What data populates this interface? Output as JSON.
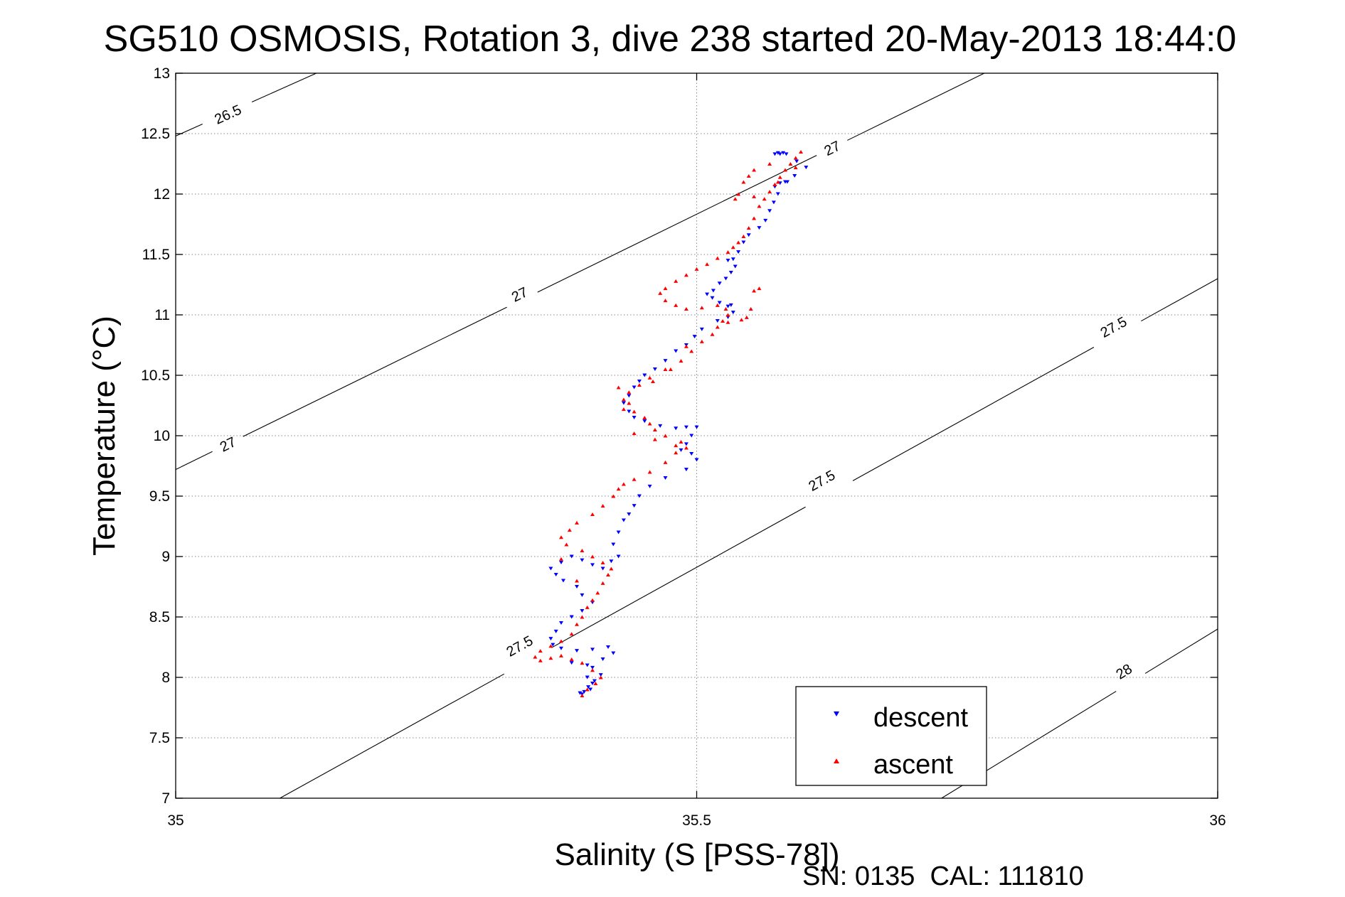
{
  "colors": {
    "descent": "#0000ff",
    "ascent": "#ff0000",
    "contour": "#000000",
    "grid": "#888888",
    "background": "#ffffff"
  },
  "chart_data": {
    "type": "scatter",
    "title": "SG510 OSMOSIS, Rotation 3, dive 238 started 20-May-2013 18:44:0",
    "xlabel": "Salinity (S [PSS-78])",
    "ylabel": "Temperature (°C)",
    "footer": "SN: 0135  CAL: 111810",
    "xlim": [
      35,
      36
    ],
    "ylim": [
      7,
      13
    ],
    "x_ticks": [
      35,
      35.5,
      36
    ],
    "x_tick_labels": [
      "35",
      "35.5",
      "36"
    ],
    "y_ticks": [
      7,
      7.5,
      8,
      8.5,
      9,
      9.5,
      10,
      10.5,
      11,
      11.5,
      12,
      12.5,
      13
    ],
    "y_tick_labels": [
      "7",
      "7.5",
      "8",
      "8.5",
      "9",
      "9.5",
      "10",
      "10.5",
      "11",
      "11.5",
      "12",
      "12.5",
      "13"
    ],
    "grid": true,
    "legend_position": "bottom-right",
    "density_contours": [
      {
        "label": "26.5",
        "points": [
          [
            35.0,
            12.48
          ],
          [
            35.135,
            13.0
          ]
        ],
        "label_positions": [
          [
            35.05,
            12.66
          ]
        ]
      },
      {
        "label": "27",
        "points": [
          [
            35.0,
            9.72
          ],
          [
            35.776,
            13.0
          ]
        ],
        "label_positions": [
          [
            35.05,
            9.93
          ],
          [
            35.33,
            11.17
          ],
          [
            35.63,
            12.38
          ]
        ]
      },
      {
        "label": "27.5",
        "points": [
          [
            35.1,
            7.0
          ],
          [
            36.0,
            11.3
          ]
        ],
        "label_positions": [
          [
            35.33,
            8.26
          ],
          [
            35.62,
            9.63
          ],
          [
            35.9,
            10.9
          ]
        ]
      },
      {
        "label": "28",
        "points": [
          [
            35.735,
            7.0
          ],
          [
            36.0,
            8.4
          ]
        ],
        "label_positions": [
          [
            35.91,
            8.05
          ]
        ]
      }
    ],
    "series": [
      {
        "name": "descent",
        "marker": "triangle-down",
        "color": "#0000ff",
        "points": [
          [
            35.575,
            12.33
          ],
          [
            35.578,
            12.34
          ],
          [
            35.58,
            12.33
          ],
          [
            35.583,
            12.34
          ],
          [
            35.586,
            12.33
          ],
          [
            35.596,
            12.27
          ],
          [
            35.605,
            12.22
          ],
          [
            35.594,
            12.15
          ],
          [
            35.585,
            12.1
          ],
          [
            35.58,
            12.09
          ],
          [
            35.587,
            12.1
          ],
          [
            35.575,
            12.06
          ],
          [
            35.578,
            12.0
          ],
          [
            35.574,
            11.93
          ],
          [
            35.57,
            11.86
          ],
          [
            35.566,
            11.78
          ],
          [
            35.56,
            11.72
          ],
          [
            35.55,
            11.66
          ],
          [
            35.545,
            11.6
          ],
          [
            35.54,
            11.52
          ],
          [
            35.535,
            11.46
          ],
          [
            35.53,
            11.45
          ],
          [
            35.537,
            11.4
          ],
          [
            35.533,
            11.35
          ],
          [
            35.528,
            11.3
          ],
          [
            35.522,
            11.26
          ],
          [
            35.516,
            11.2
          ],
          [
            35.51,
            11.17
          ],
          [
            35.515,
            11.14
          ],
          [
            35.522,
            11.1
          ],
          [
            35.53,
            11.07
          ],
          [
            35.533,
            11.08
          ],
          [
            35.535,
            11.02
          ],
          [
            35.53,
            10.98
          ],
          [
            35.52,
            10.95
          ],
          [
            35.505,
            10.88
          ],
          [
            35.498,
            10.82
          ],
          [
            35.49,
            10.75
          ],
          [
            35.48,
            10.7
          ],
          [
            35.47,
            10.62
          ],
          [
            35.46,
            10.55
          ],
          [
            35.45,
            10.5
          ],
          [
            35.445,
            10.45
          ],
          [
            35.44,
            10.4
          ],
          [
            35.435,
            10.33
          ],
          [
            35.43,
            10.27
          ],
          [
            35.435,
            10.2
          ],
          [
            35.44,
            10.15
          ],
          [
            35.45,
            10.12
          ],
          [
            35.465,
            10.08
          ],
          [
            35.48,
            10.06
          ],
          [
            35.49,
            10.07
          ],
          [
            35.5,
            10.07
          ],
          [
            35.495,
            10.0
          ],
          [
            35.49,
            9.93
          ],
          [
            35.485,
            9.88
          ],
          [
            35.495,
            9.85
          ],
          [
            35.5,
            9.8
          ],
          [
            35.49,
            9.72
          ],
          [
            35.47,
            9.65
          ],
          [
            35.455,
            9.58
          ],
          [
            35.445,
            9.5
          ],
          [
            35.44,
            9.42
          ],
          [
            35.435,
            9.35
          ],
          [
            35.43,
            9.3
          ],
          [
            35.425,
            9.2
          ],
          [
            35.42,
            9.1
          ],
          [
            35.425,
            9.0
          ],
          [
            35.418,
            8.96
          ],
          [
            35.41,
            8.9
          ],
          [
            35.4,
            8.93
          ],
          [
            35.39,
            8.97
          ],
          [
            35.38,
            9.0
          ],
          [
            35.37,
            8.95
          ],
          [
            35.36,
            8.9
          ],
          [
            35.365,
            8.85
          ],
          [
            35.372,
            8.8
          ],
          [
            35.385,
            8.75
          ],
          [
            35.39,
            8.68
          ],
          [
            35.4,
            8.62
          ],
          [
            35.39,
            8.55
          ],
          [
            35.38,
            8.5
          ],
          [
            35.37,
            8.45
          ],
          [
            35.365,
            8.38
          ],
          [
            35.36,
            8.32
          ],
          [
            35.362,
            8.27
          ],
          [
            35.37,
            8.24
          ],
          [
            35.385,
            8.22
          ],
          [
            35.4,
            8.23
          ],
          [
            35.415,
            8.25
          ],
          [
            35.42,
            8.2
          ],
          [
            35.41,
            8.15
          ],
          [
            35.4,
            8.08
          ],
          [
            35.395,
            8.0
          ],
          [
            35.4,
            7.95
          ],
          [
            35.398,
            7.9
          ],
          [
            35.392,
            7.88
          ],
          [
            35.388,
            7.87
          ],
          [
            35.39,
            7.86
          ],
          [
            35.396,
            7.92
          ],
          [
            35.402,
            7.97
          ],
          [
            35.408,
            8.02
          ],
          [
            35.395,
            8.1
          ],
          [
            35.38,
            8.12
          ]
        ]
      },
      {
        "name": "ascent",
        "marker": "triangle-up",
        "color": "#ff0000",
        "points": [
          [
            35.39,
            7.85
          ],
          [
            35.395,
            7.9
          ],
          [
            35.403,
            7.95
          ],
          [
            35.408,
            8.0
          ],
          [
            35.4,
            8.06
          ],
          [
            35.39,
            8.12
          ],
          [
            35.38,
            8.15
          ],
          [
            35.37,
            8.18
          ],
          [
            35.36,
            8.16
          ],
          [
            35.35,
            8.14
          ],
          [
            35.345,
            8.17
          ],
          [
            35.35,
            8.22
          ],
          [
            35.36,
            8.26
          ],
          [
            35.37,
            8.3
          ],
          [
            35.38,
            8.36
          ],
          [
            35.385,
            8.44
          ],
          [
            35.39,
            8.5
          ],
          [
            35.395,
            8.58
          ],
          [
            35.4,
            8.64
          ],
          [
            35.405,
            8.7
          ],
          [
            35.41,
            8.78
          ],
          [
            35.415,
            8.85
          ],
          [
            35.418,
            8.9
          ],
          [
            35.41,
            8.95
          ],
          [
            35.4,
            9.0
          ],
          [
            35.39,
            9.05
          ],
          [
            35.375,
            9.1
          ],
          [
            35.37,
            9.16
          ],
          [
            35.378,
            9.22
          ],
          [
            35.385,
            9.28
          ],
          [
            35.4,
            9.35
          ],
          [
            35.41,
            9.42
          ],
          [
            35.42,
            9.5
          ],
          [
            35.425,
            9.56
          ],
          [
            35.43,
            9.6
          ],
          [
            35.44,
            9.64
          ],
          [
            35.455,
            9.7
          ],
          [
            35.47,
            9.78
          ],
          [
            35.48,
            9.86
          ],
          [
            35.49,
            9.9
          ],
          [
            35.485,
            9.95
          ],
          [
            35.47,
            10.0
          ],
          [
            35.46,
            10.05
          ],
          [
            35.455,
            10.1
          ],
          [
            35.45,
            10.15
          ],
          [
            35.44,
            10.2
          ],
          [
            35.435,
            10.27
          ],
          [
            35.43,
            10.3
          ],
          [
            35.435,
            10.36
          ],
          [
            35.445,
            10.42
          ],
          [
            35.455,
            10.48
          ],
          [
            35.47,
            10.55
          ],
          [
            35.485,
            10.62
          ],
          [
            35.495,
            10.7
          ],
          [
            35.505,
            10.78
          ],
          [
            35.515,
            10.84
          ],
          [
            35.52,
            10.9
          ],
          [
            35.525,
            10.95
          ],
          [
            35.53,
            11.0
          ],
          [
            35.528,
            11.05
          ],
          [
            35.52,
            11.08
          ],
          [
            35.505,
            11.06
          ],
          [
            35.49,
            11.05
          ],
          [
            35.48,
            11.08
          ],
          [
            35.47,
            11.12
          ],
          [
            35.465,
            11.18
          ],
          [
            35.47,
            11.22
          ],
          [
            35.48,
            11.28
          ],
          [
            35.49,
            11.33
          ],
          [
            35.5,
            11.38
          ],
          [
            35.51,
            11.42
          ],
          [
            35.52,
            11.47
          ],
          [
            35.53,
            11.52
          ],
          [
            35.535,
            11.56
          ],
          [
            35.54,
            11.6
          ],
          [
            35.545,
            11.65
          ],
          [
            35.55,
            11.72
          ],
          [
            35.555,
            11.8
          ],
          [
            35.56,
            11.9
          ],
          [
            35.565,
            11.96
          ],
          [
            35.57,
            12.02
          ],
          [
            35.575,
            12.08
          ],
          [
            35.578,
            12.1
          ],
          [
            35.58,
            12.14
          ],
          [
            35.585,
            12.2
          ],
          [
            35.59,
            12.25
          ],
          [
            35.595,
            12.3
          ],
          [
            35.6,
            12.35
          ],
          [
            35.595,
            12.22
          ],
          [
            35.57,
            12.25
          ],
          [
            35.555,
            12.2
          ],
          [
            35.55,
            12.15
          ],
          [
            35.545,
            12.1
          ],
          [
            35.54,
            12.0
          ],
          [
            35.537,
            11.96
          ],
          [
            35.555,
            11.98
          ],
          [
            35.56,
            11.22
          ],
          [
            35.555,
            11.2
          ],
          [
            35.552,
            11.05
          ],
          [
            35.548,
            10.98
          ],
          [
            35.543,
            10.96
          ],
          [
            35.53,
            10.94
          ],
          [
            35.49,
            10.74
          ],
          [
            35.475,
            10.55
          ],
          [
            35.458,
            10.45
          ],
          [
            35.425,
            10.4
          ],
          [
            35.43,
            10.22
          ],
          [
            35.44,
            10.02
          ],
          [
            35.46,
            9.97
          ],
          [
            35.48,
            9.92
          ],
          [
            35.37,
            8.98
          ],
          [
            35.385,
            8.8
          ]
        ]
      }
    ]
  }
}
